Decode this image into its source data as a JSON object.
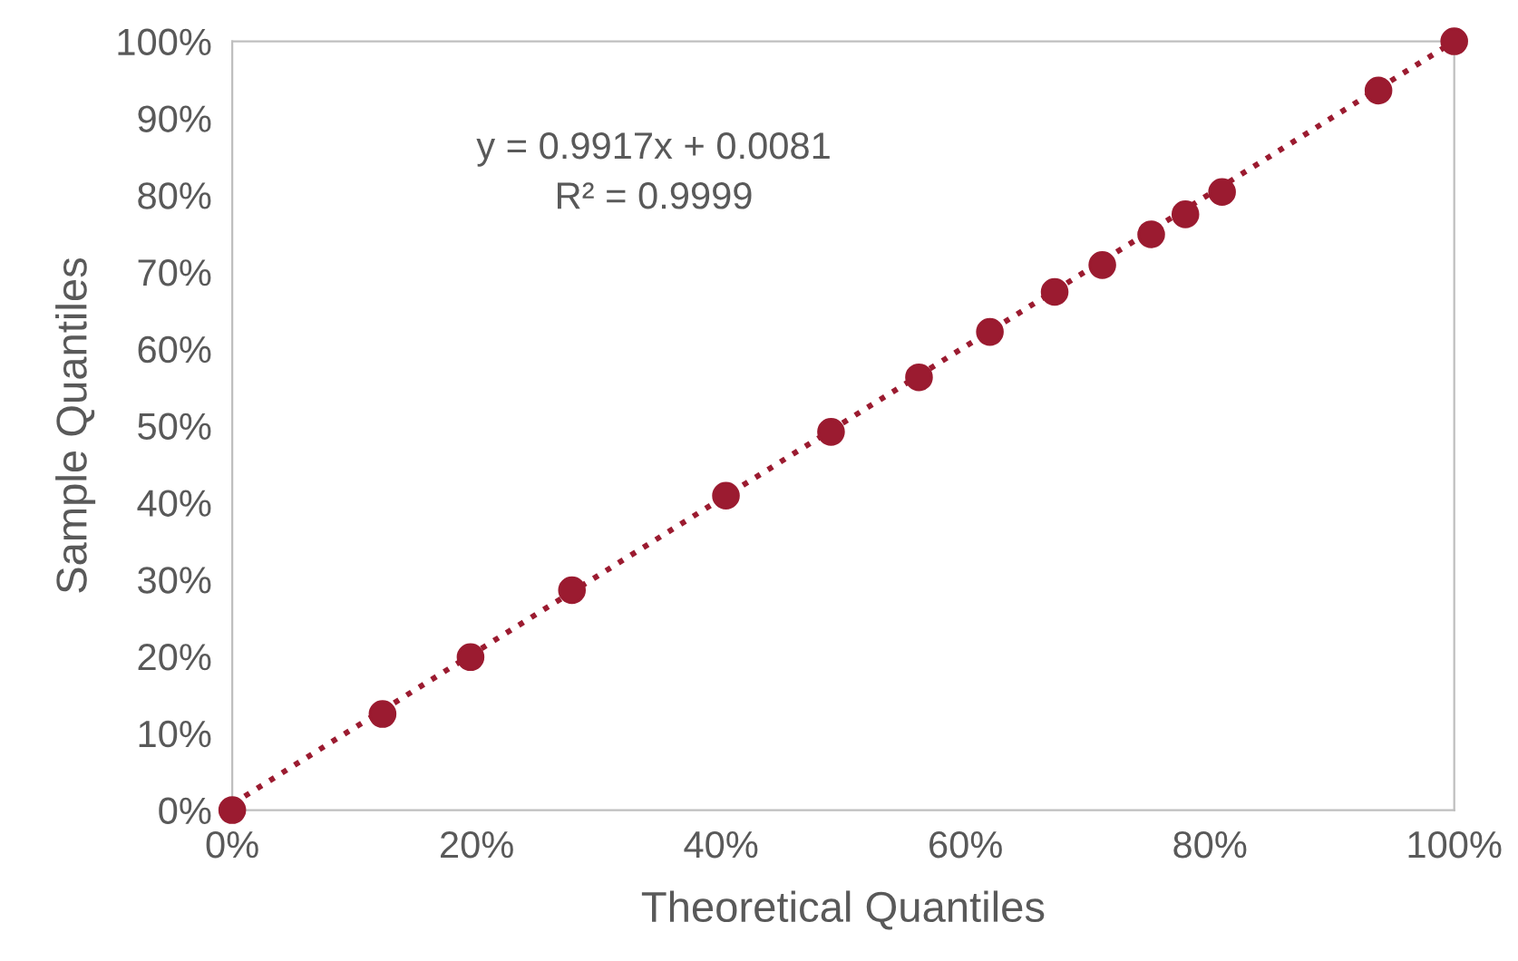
{
  "chart_data": {
    "type": "scatter",
    "xlabel": "Theoretical Quantiles",
    "ylabel": "Sample Quantiles",
    "annotations": [
      "y = 0.9917x + 0.0081",
      "R² = 0.9999"
    ],
    "xlim": [
      0,
      100
    ],
    "ylim": [
      0,
      100
    ],
    "xticks": [
      {
        "value": 0,
        "label": "0%"
      },
      {
        "value": 20,
        "label": "20%"
      },
      {
        "value": 40,
        "label": "40%"
      },
      {
        "value": 60,
        "label": "60%"
      },
      {
        "value": 80,
        "label": "80%"
      },
      {
        "value": 100,
        "label": "100%"
      }
    ],
    "yticks": [
      {
        "value": 0,
        "label": "0%"
      },
      {
        "value": 10,
        "label": "10%"
      },
      {
        "value": 20,
        "label": "20%"
      },
      {
        "value": 30,
        "label": "30%"
      },
      {
        "value": 40,
        "label": "40%"
      },
      {
        "value": 50,
        "label": "50%"
      },
      {
        "value": 60,
        "label": "60%"
      },
      {
        "value": 70,
        "label": "70%"
      },
      {
        "value": 80,
        "label": "80%"
      },
      {
        "value": 90,
        "label": "90%"
      },
      {
        "value": 100,
        "label": "100%"
      }
    ],
    "grid": false,
    "legend": false,
    "marker": "circle",
    "series": [
      {
        "color": "#9b1b30",
        "x": [
          0,
          12.3,
          19.5,
          27.8,
          40.4,
          49.0,
          56.2,
          62.0,
          67.3,
          71.2,
          75.2,
          78.0,
          81.0,
          93.8,
          100
        ],
        "values": [
          0,
          12.5,
          19.9,
          28.6,
          40.9,
          49.2,
          56.3,
          62.2,
          67.4,
          70.9,
          74.9,
          77.5,
          80.4,
          93.6,
          100
        ]
      },
      {
        "type": "line",
        "color": "#9b1b30",
        "line_style": "dotted",
        "marker": "none",
        "x": [
          0,
          100
        ],
        "values": [
          0.8,
          100.0
        ]
      }
    ]
  }
}
